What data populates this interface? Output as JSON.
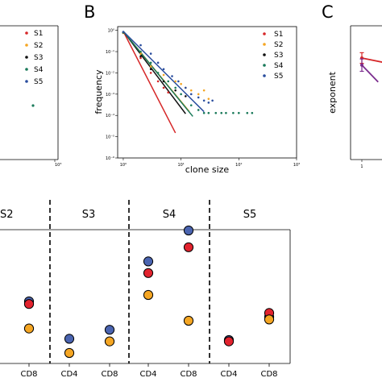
{
  "panels": {
    "b_letter": "B",
    "c_letter": "C"
  },
  "chart_data": [
    {
      "id": "panel-a-partial",
      "type": "scatter",
      "legend_position": "right",
      "series": [
        {
          "name": "S1",
          "color": "#d62728",
          "points": []
        },
        {
          "name": "S2",
          "color": "#f5a623",
          "points": []
        },
        {
          "name": "S3",
          "color": "#111111",
          "points": []
        },
        {
          "name": "S4",
          "color": "#1a7a5a",
          "points": [
            {
              "x": 500,
              "y": 0.2
            }
          ]
        },
        {
          "name": "S5",
          "color": "#2a4d9e",
          "points": []
        }
      ],
      "x_tick_labels": [
        "10³"
      ]
    },
    {
      "id": "panel-b",
      "type": "scatter",
      "xlabel": "clone size",
      "ylabel": "frequency",
      "xscale": "log",
      "yscale": "log",
      "xlim": [
        0.8,
        1000
      ],
      "ylim": [
        1e-06,
        1.5
      ],
      "x_ticks": [
        1,
        10,
        100,
        1000
      ],
      "x_tick_labels": [
        "10⁰",
        "10¹",
        "10²",
        "10³"
      ],
      "y_ticks": [
        1,
        0.1,
        0.01,
        0.001,
        0.0001,
        1e-05,
        1e-06
      ],
      "y_tick_labels": [
        "10⁰",
        "10⁻¹",
        "10⁻²",
        "10⁻³",
        "10⁻⁴",
        "10⁻⁵",
        "10⁻⁶"
      ],
      "legend_position": "top-right",
      "series": [
        {
          "name": "S1",
          "color": "#d62728",
          "points": [
            [
              1,
              0.8
            ],
            [
              2,
              0.05
            ],
            [
              3,
              0.01
            ],
            [
              4,
              0.004
            ],
            [
              5,
              0.002
            ],
            [
              6,
              0.0012
            ]
          ],
          "fit": [
            [
              1,
              0.9
            ],
            [
              8,
              1.5e-05
            ]
          ]
        },
        {
          "name": "S2",
          "color": "#f5a623",
          "points": [
            [
              1,
              0.75
            ],
            [
              2,
              0.08
            ],
            [
              3,
              0.02
            ],
            [
              5,
              0.008
            ],
            [
              8,
              0.004
            ],
            [
              10,
              0.003
            ],
            [
              12,
              0.002
            ],
            [
              15,
              0.0015
            ],
            [
              20,
              0.001
            ],
            [
              25,
              0.0015
            ],
            [
              30,
              0.0006
            ]
          ],
          "fit": [
            [
              1,
              0.9
            ],
            [
              14,
              0.00015
            ]
          ]
        },
        {
          "name": "S3",
          "color": "#111111",
          "points": [
            [
              1,
              0.78
            ],
            [
              2,
              0.06
            ],
            [
              3,
              0.015
            ],
            [
              5,
              0.004
            ],
            [
              8,
              0.0015
            ],
            [
              12,
              0.0008
            ]
          ],
          "fit": [
            [
              1,
              0.9
            ],
            [
              12,
              0.00012
            ]
          ]
        },
        {
          "name": "S4",
          "color": "#1a7a5a",
          "points": [
            [
              1,
              0.8
            ],
            [
              2,
              0.1
            ],
            [
              3,
              0.03
            ],
            [
              4,
              0.01
            ],
            [
              6,
              0.004
            ],
            [
              8,
              0.002
            ],
            [
              10,
              0.001
            ],
            [
              15,
              0.0003
            ],
            [
              20,
              0.00018
            ],
            [
              25,
              0.00013
            ],
            [
              30,
              0.00013
            ],
            [
              40,
              0.00013
            ],
            [
              50,
              0.00013
            ],
            [
              60,
              0.00013
            ],
            [
              80,
              0.00013
            ],
            [
              100,
              0.00013
            ],
            [
              140,
              0.00013
            ],
            [
              170,
              0.00013
            ]
          ],
          "fit": [
            [
              1,
              0.9
            ],
            [
              16,
              9e-05
            ]
          ]
        },
        {
          "name": "S5",
          "color": "#2a4d9e",
          "points": [
            [
              1,
              0.85
            ],
            [
              2,
              0.2
            ],
            [
              3,
              0.08
            ],
            [
              4,
              0.03
            ],
            [
              5,
              0.015
            ],
            [
              7,
              0.007
            ],
            [
              9,
              0.004
            ],
            [
              12,
              0.002
            ],
            [
              15,
              0.001
            ],
            [
              20,
              0.0007
            ],
            [
              25,
              0.0005
            ],
            [
              30,
              0.0004
            ],
            [
              35,
              0.0005
            ]
          ],
          "fit": [
            [
              1,
              0.9
            ],
            [
              25,
              0.00015
            ]
          ]
        }
      ]
    },
    {
      "id": "panel-c-partial",
      "type": "line",
      "ylabel": "exponent",
      "x_tick_labels": [
        "1"
      ],
      "series": [
        {
          "name": "",
          "color": "#d62728",
          "points": [
            [
              1,
              4.75
            ],
            [
              1.6,
              4.5
            ]
          ],
          "err": [
            0.3,
            0
          ]
        },
        {
          "name": "",
          "color": "#7b2d8e",
          "points": [
            [
              1,
              4.35
            ],
            [
              1.45,
              3.4
            ]
          ],
          "err": [
            0.35,
            0
          ]
        }
      ]
    },
    {
      "id": "panel-d-partial",
      "type": "scatter",
      "groups": [
        "S2",
        "S3",
        "S4",
        "S5"
      ],
      "categories": [
        "CD8",
        "CD4",
        "CD8",
        "CD4",
        "CD8",
        "CD4",
        "CD8"
      ],
      "series": [
        {
          "name": "",
          "color": "#4a64b0",
          "values": [
            0.45,
            0.16,
            0.23,
            0.76,
            1.0,
            0.15,
            0.33
          ]
        },
        {
          "name": "",
          "color": "#e2232e",
          "values": [
            0.43,
            null,
            null,
            0.67,
            0.87,
            0.14,
            0.36
          ]
        },
        {
          "name": "",
          "color": "#f5a623",
          "values": [
            0.24,
            0.05,
            0.14,
            0.5,
            0.3,
            null,
            0.31
          ]
        }
      ]
    }
  ]
}
